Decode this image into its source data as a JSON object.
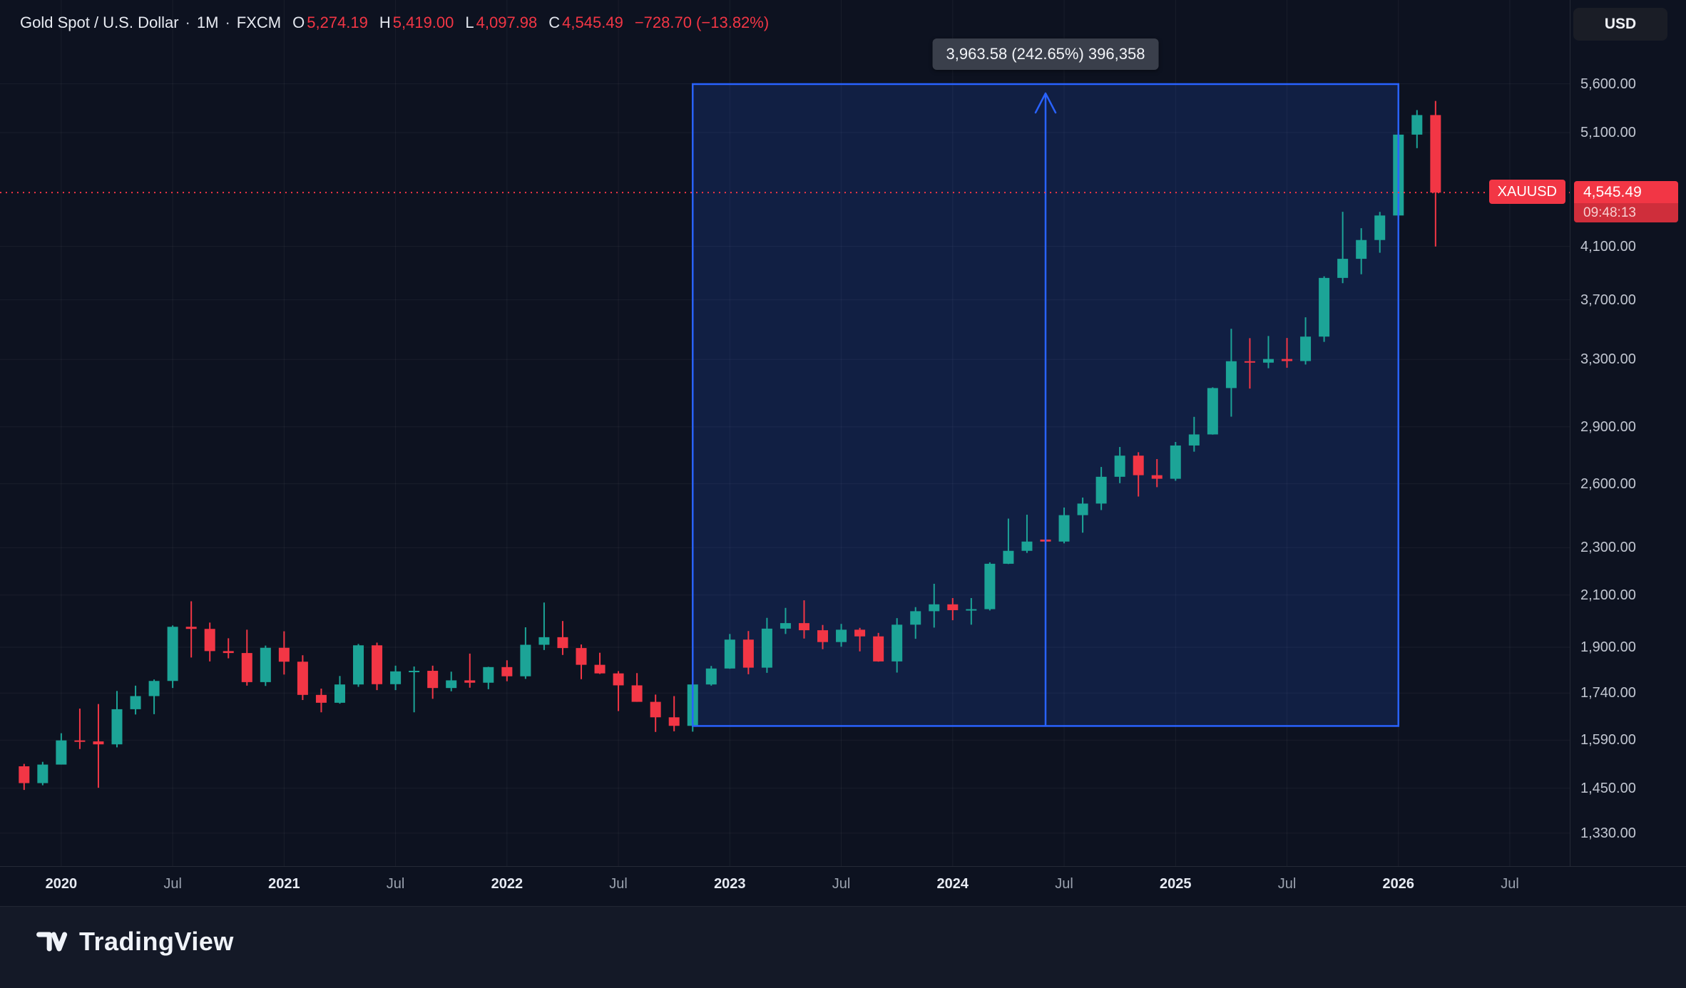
{
  "header": {
    "symbol": "Gold Spot / U.S. Dollar",
    "separator": "·",
    "interval": "1M",
    "exchange": "FXCM",
    "ohlc": {
      "open_label": "O",
      "open": "5,274.19",
      "high_label": "H",
      "high": "5,419.00",
      "low_label": "L",
      "low": "4,097.98",
      "close_label": "C",
      "close": "4,545.49",
      "change": "−728.70 (−13.82%)"
    },
    "value_color": "#f23645"
  },
  "top_right": {
    "currency_button": "USD"
  },
  "measure_tool": {
    "label": "3,963.58 (242.65%) 396,358",
    "start_month": "2022-11",
    "end_month": "2026-01",
    "price_top": 5597.16,
    "price_bottom": 1633.58,
    "color": "#2962ff"
  },
  "price_line": {
    "symbol_tag": "XAUUSD",
    "price": "4,545.49",
    "countdown": "09:48:13",
    "value": 4545.49,
    "color": "#f23645"
  },
  "price_axis": {
    "ticks": [
      {
        "label": "5,600.00",
        "value": 5600
      },
      {
        "label": "5,100.00",
        "value": 5100
      },
      {
        "label": "4,100.00",
        "value": 4100
      },
      {
        "label": "3,700.00",
        "value": 3700
      },
      {
        "label": "3,300.00",
        "value": 3300
      },
      {
        "label": "2,900.00",
        "value": 2900
      },
      {
        "label": "2,600.00",
        "value": 2600
      },
      {
        "label": "2,300.00",
        "value": 2300
      },
      {
        "label": "2,100.00",
        "value": 2100
      },
      {
        "label": "1,900.00",
        "value": 1900
      },
      {
        "label": "1,740.00",
        "value": 1740
      },
      {
        "label": "1,590.00",
        "value": 1590
      },
      {
        "label": "1,450.00",
        "value": 1450
      },
      {
        "label": "1,330.00",
        "value": 1330
      }
    ]
  },
  "time_axis": {
    "ticks": [
      {
        "label": "2020",
        "month": "2020-01",
        "major": true
      },
      {
        "label": "Jul",
        "month": "2020-07",
        "major": false
      },
      {
        "label": "2021",
        "month": "2021-01",
        "major": true
      },
      {
        "label": "Jul",
        "month": "2021-07",
        "major": false
      },
      {
        "label": "2022",
        "month": "2022-01",
        "major": true
      },
      {
        "label": "Jul",
        "month": "2022-07",
        "major": false
      },
      {
        "label": "2023",
        "month": "2023-01",
        "major": true
      },
      {
        "label": "Jul",
        "month": "2023-07",
        "major": false
      },
      {
        "label": "2024",
        "month": "2024-01",
        "major": true
      },
      {
        "label": "Jul",
        "month": "2024-07",
        "major": false
      },
      {
        "label": "2025",
        "month": "2025-01",
        "major": true
      },
      {
        "label": "Jul",
        "month": "2025-07",
        "major": false
      },
      {
        "label": "2026",
        "month": "2026-01",
        "major": true
      },
      {
        "label": "Jul",
        "month": "2026-07",
        "major": false
      }
    ]
  },
  "chart_data": {
    "type": "candlestick",
    "title": "Gold Spot / U.S. Dollar",
    "symbol": "XAUUSD",
    "interval": "1M",
    "exchange": "FXCM",
    "price_scale": "logarithmic",
    "ylim": [
      1280,
      5800
    ],
    "grid": true,
    "up_color": "#1ca497",
    "down_color": "#f23645",
    "start_month": "2019-11",
    "columns": [
      "open",
      "high",
      "low",
      "close"
    ],
    "ohlc": [
      [
        1512,
        1519,
        1445,
        1464
      ],
      [
        1464,
        1525,
        1458,
        1517
      ],
      [
        1517,
        1611,
        1517,
        1589
      ],
      [
        1589,
        1689,
        1563,
        1586
      ],
      [
        1586,
        1704,
        1451,
        1577
      ],
      [
        1577,
        1747,
        1568,
        1687
      ],
      [
        1687,
        1765,
        1670,
        1730
      ],
      [
        1730,
        1786,
        1671,
        1781
      ],
      [
        1781,
        1981,
        1757,
        1976
      ],
      [
        1976,
        2075,
        1863,
        1968
      ],
      [
        1968,
        1992,
        1849,
        1886
      ],
      [
        1886,
        1933,
        1860,
        1879
      ],
      [
        1879,
        1965,
        1765,
        1777
      ],
      [
        1777,
        1906,
        1764,
        1898
      ],
      [
        1898,
        1959,
        1803,
        1848
      ],
      [
        1848,
        1871,
        1717,
        1734
      ],
      [
        1734,
        1755,
        1677,
        1708
      ],
      [
        1708,
        1798,
        1705,
        1769
      ],
      [
        1769,
        1912,
        1761,
        1907
      ],
      [
        1907,
        1917,
        1750,
        1770
      ],
      [
        1770,
        1834,
        1750,
        1814
      ],
      [
        1814,
        1831,
        1677,
        1816
      ],
      [
        1816,
        1834,
        1721,
        1757
      ],
      [
        1757,
        1813,
        1746,
        1783
      ],
      [
        1783,
        1877,
        1758,
        1775
      ],
      [
        1775,
        1830,
        1753,
        1829
      ],
      [
        1829,
        1853,
        1780,
        1797
      ],
      [
        1797,
        1974,
        1788,
        1909
      ],
      [
        1909,
        2070,
        1890,
        1937
      ],
      [
        1937,
        1998,
        1872,
        1897
      ],
      [
        1897,
        1910,
        1787,
        1837
      ],
      [
        1837,
        1880,
        1805,
        1807
      ],
      [
        1807,
        1815,
        1681,
        1766
      ],
      [
        1766,
        1808,
        1711,
        1711
      ],
      [
        1711,
        1735,
        1615,
        1661
      ],
      [
        1661,
        1730,
        1617,
        1634
      ],
      [
        1634,
        1787,
        1616,
        1769
      ],
      [
        1769,
        1833,
        1765,
        1824
      ],
      [
        1824,
        1949,
        1823,
        1928
      ],
      [
        1928,
        1960,
        1804,
        1827
      ],
      [
        1827,
        2010,
        1809,
        1969
      ],
      [
        1969,
        2049,
        1949,
        1990
      ],
      [
        1990,
        2079,
        1932,
        1963
      ],
      [
        1963,
        1983,
        1893,
        1919
      ],
      [
        1919,
        1987,
        1902,
        1965
      ],
      [
        1965,
        1972,
        1885,
        1940
      ],
      [
        1940,
        1953,
        1848,
        1849
      ],
      [
        1849,
        2009,
        1810,
        1984
      ],
      [
        1984,
        2052,
        1931,
        2036
      ],
      [
        2036,
        2146,
        1973,
        2063
      ],
      [
        2063,
        2088,
        2001,
        2040
      ],
      [
        2040,
        2088,
        1984,
        2044
      ],
      [
        2044,
        2236,
        2039,
        2230
      ],
      [
        2230,
        2432,
        2229,
        2286
      ],
      [
        2286,
        2450,
        2277,
        2327
      ],
      [
        2336,
        2388,
        2287,
        2327
      ],
      [
        2327,
        2484,
        2319,
        2448
      ],
      [
        2448,
        2532,
        2367,
        2503
      ],
      [
        2503,
        2685,
        2472,
        2635
      ],
      [
        2635,
        2790,
        2603,
        2744
      ],
      [
        2744,
        2762,
        2537,
        2643
      ],
      [
        2643,
        2726,
        2583,
        2625
      ],
      [
        2625,
        2817,
        2615,
        2798
      ],
      [
        2798,
        2956,
        2765,
        2858
      ],
      [
        2858,
        3128,
        2857,
        3124
      ],
      [
        3124,
        3500,
        2957,
        3289
      ],
      [
        3289,
        3438,
        3121,
        3280
      ],
      [
        3280,
        3452,
        3245,
        3303
      ],
      [
        3303,
        3439,
        3248,
        3290
      ],
      [
        3290,
        3578,
        3268,
        3448
      ],
      [
        3448,
        3871,
        3413,
        3859
      ],
      [
        3859,
        4381,
        3820,
        4003
      ],
      [
        4003,
        4245,
        3886,
        4150
      ],
      [
        4150,
        4380,
        4050,
        4350
      ],
      [
        4350,
        5130,
        4280,
        5080
      ],
      [
        5080,
        5325,
        4950,
        5274.19
      ],
      [
        5274.19,
        5419,
        4097.98,
        4545.49
      ]
    ]
  },
  "footer": {
    "logo_text": "TradingView"
  }
}
